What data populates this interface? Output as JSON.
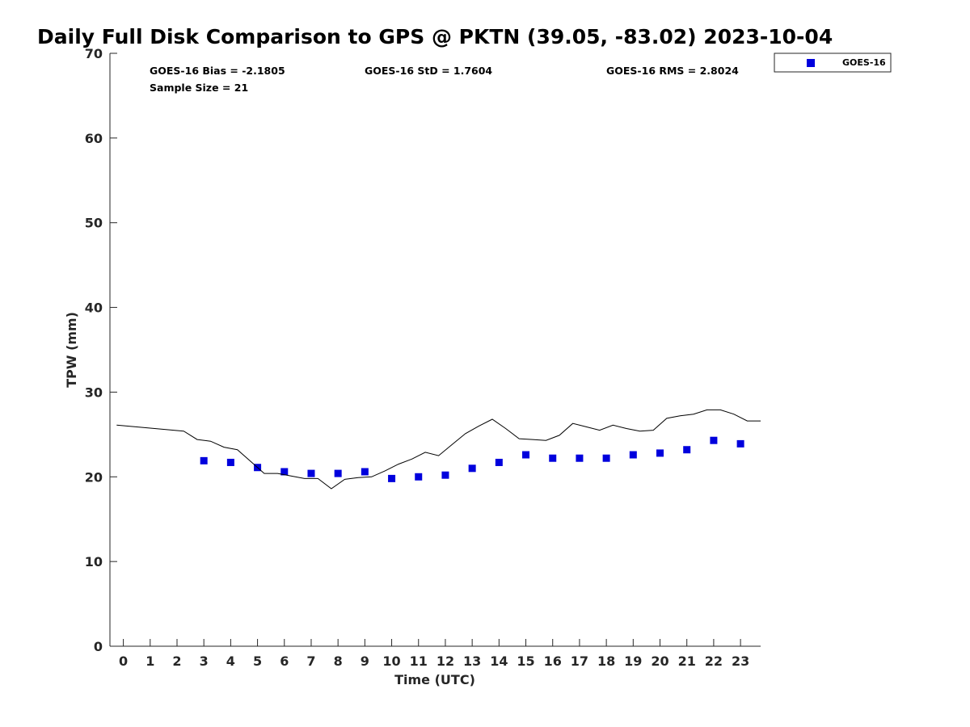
{
  "chart_data": {
    "type": "scatter",
    "title": "Daily Full Disk Comparison to GPS @ PKTN (39.05, -83.02) 2023-10-04",
    "xlabel": "Time (UTC)",
    "ylabel": "TPW (mm)",
    "xlim": [
      -0.5,
      23.75
    ],
    "ylim": [
      0,
      70
    ],
    "x_ticks": [
      "0",
      "1",
      "2",
      "3",
      "4",
      "5",
      "6",
      "7",
      "8",
      "9",
      "10",
      "11",
      "12",
      "13",
      "14",
      "15",
      "16",
      "17",
      "18",
      "19",
      "20",
      "21",
      "22",
      "23"
    ],
    "y_ticks": [
      "0",
      "10",
      "20",
      "30",
      "40",
      "50",
      "60",
      "70"
    ],
    "grid": false,
    "legend": {
      "placement": "top-right",
      "entries": [
        "GOES-16"
      ]
    },
    "stats": {
      "bias": "GOES-16 Bias = -2.1805",
      "std": "GOES-16 StD = 1.7604",
      "rms": "GOES-16 RMS = 2.8024",
      "sample": "Sample Size = 21"
    },
    "series": [
      {
        "name": "GOES-16",
        "kind": "scatter",
        "color": "#0000dd",
        "x": [
          3,
          4,
          5,
          6,
          7,
          8,
          9,
          10,
          11,
          12,
          13,
          14,
          15,
          16,
          17,
          18,
          19,
          20,
          21,
          22,
          23
        ],
        "y": [
          21.9,
          21.7,
          21.1,
          20.6,
          20.4,
          20.4,
          20.6,
          19.8,
          20.0,
          20.2,
          21.0,
          21.7,
          22.6,
          22.2,
          22.2,
          22.2,
          22.6,
          22.8,
          23.2,
          24.3,
          23.9
        ]
      },
      {
        "kind": "line",
        "color": "#000000",
        "x": [
          -0.25,
          2.25,
          2.75,
          3.25,
          3.75,
          4.25,
          4.75,
          5.25,
          5.75,
          6.25,
          6.75,
          7.25,
          7.75,
          8.25,
          8.75,
          9.25,
          9.75,
          10.25,
          10.75,
          11.25,
          11.75,
          12.25,
          12.75,
          13.25,
          13.75,
          14.25,
          14.75,
          15.25,
          15.75,
          16.25,
          16.75,
          17.25,
          17.75,
          18.25,
          18.75,
          19.25,
          19.75,
          20.25,
          20.75,
          21.25,
          21.75,
          22.25,
          22.75,
          23.25,
          23.75
        ],
        "y": [
          26.1,
          25.4,
          24.4,
          24.2,
          23.5,
          23.2,
          21.8,
          20.4,
          20.4,
          20.1,
          19.8,
          19.8,
          18.6,
          19.7,
          19.9,
          20.0,
          20.7,
          21.5,
          22.1,
          22.9,
          22.5,
          23.8,
          25.1,
          26.0,
          26.8,
          25.7,
          24.5,
          24.4,
          24.3,
          24.9,
          26.3,
          25.9,
          25.5,
          26.1,
          25.7,
          25.4,
          25.5,
          26.9,
          27.2,
          27.4,
          27.9,
          27.9,
          27.4,
          26.6,
          26.6
        ]
      }
    ]
  }
}
